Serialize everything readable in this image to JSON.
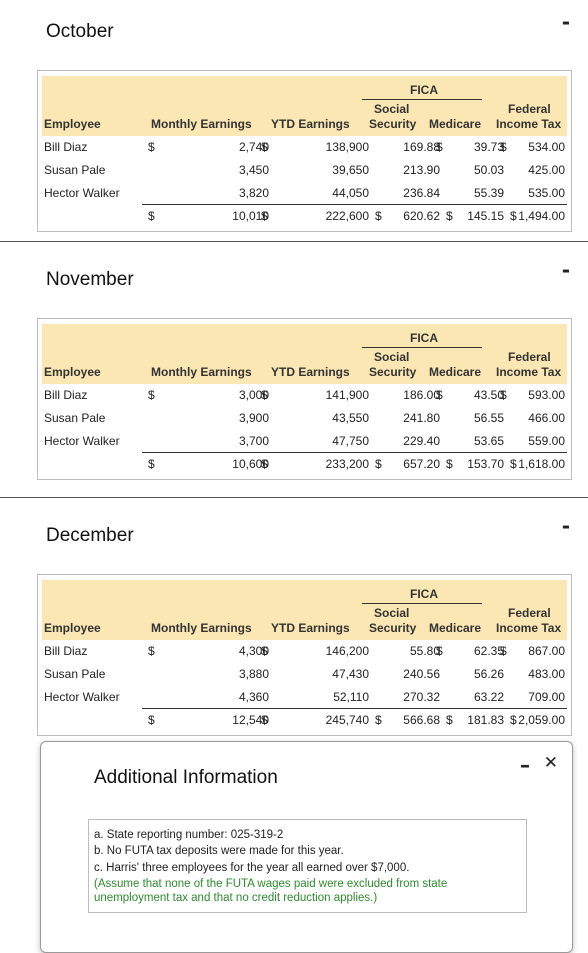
{
  "header_labels": {
    "employee": "Employee",
    "monthly_earnings": "Monthly Earnings",
    "ytd_earnings": "YTD Earnings",
    "fica": "FICA",
    "social": "Social",
    "security": "Security",
    "medicare": "Medicare",
    "federal": "Federal",
    "income_tax": "Income Tax",
    "dollar": "$"
  },
  "months": [
    {
      "name": "October",
      "rows": [
        {
          "employee": "Bill Diaz",
          "monthly": "2,740",
          "ytd": "138,900",
          "ss": "169.88",
          "medicare": "39.73",
          "fit": "534.00"
        },
        {
          "employee": "Susan Pale",
          "monthly": "3,450",
          "ytd": "39,650",
          "ss": "213.90",
          "medicare": "50.03",
          "fit": "425.00"
        },
        {
          "employee": "Hector Walker",
          "monthly": "3,820",
          "ytd": "44,050",
          "ss": "236.84",
          "medicare": "55.39",
          "fit": "535.00"
        }
      ],
      "totals": {
        "monthly": "10,010",
        "ytd": "222,600",
        "ss": "620.62",
        "medicare": "145.15",
        "fit": "1,494.00"
      }
    },
    {
      "name": "November",
      "rows": [
        {
          "employee": "Bill Diaz",
          "monthly": "3,000",
          "ytd": "141,900",
          "ss": "186.00",
          "medicare": "43.50",
          "fit": "593.00"
        },
        {
          "employee": "Susan Pale",
          "monthly": "3,900",
          "ytd": "43,550",
          "ss": "241.80",
          "medicare": "56.55",
          "fit": "466.00"
        },
        {
          "employee": "Hector Walker",
          "monthly": "3,700",
          "ytd": "47,750",
          "ss": "229.40",
          "medicare": "53.65",
          "fit": "559.00"
        }
      ],
      "totals": {
        "monthly": "10,600",
        "ytd": "233,200",
        "ss": "657.20",
        "medicare": "153.70",
        "fit": "1,618.00"
      }
    },
    {
      "name": "December",
      "rows": [
        {
          "employee": "Bill Diaz",
          "monthly": "4,300",
          "ytd": "146,200",
          "ss": "55.80",
          "medicare": "62.35",
          "fit": "867.00"
        },
        {
          "employee": "Susan Pale",
          "monthly": "3,880",
          "ytd": "47,430",
          "ss": "240.56",
          "medicare": "56.26",
          "fit": "483.00"
        },
        {
          "employee": "Hector Walker",
          "monthly": "4,360",
          "ytd": "52,110",
          "ss": "270.32",
          "medicare": "63.22",
          "fit": "709.00"
        }
      ],
      "totals": {
        "monthly": "12,540",
        "ytd": "245,740",
        "ss": "566.68",
        "medicare": "181.83",
        "fit": "2,059.00"
      }
    }
  ],
  "modal": {
    "title": "Additional Information",
    "lines": [
      "a. State reporting number: 025-319-2",
      "b. No FUTA tax deposits were made for this year.",
      "c. Harris' three employees for the year all earned over $7,000."
    ],
    "note_lines": [
      "(Assume that none of the FUTA wages paid were excluded from state",
      "unemployment tax and that no credit reduction applies.)"
    ],
    "minimize_symbol": "–",
    "close_symbol": "✕"
  },
  "section_minimize_symbol": "-",
  "colors": {
    "header_band": "#fbe7b3",
    "note_text": "#2e8b2e"
  }
}
